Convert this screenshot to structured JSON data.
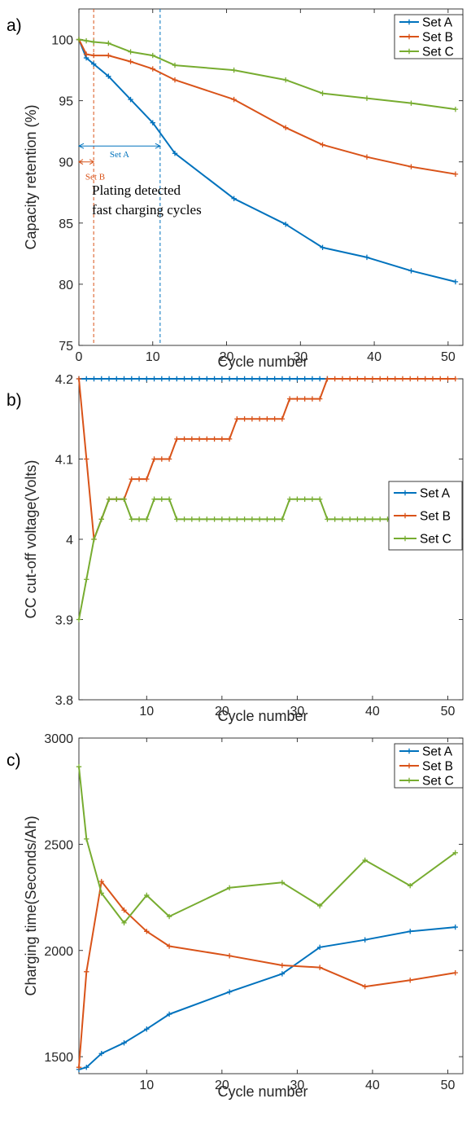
{
  "chart_data": [
    {
      "panel_label": "a)",
      "type": "line",
      "xlabel": "Cycle number",
      "ylabel": "Capacity retention (%)",
      "xlim": [
        0,
        52
      ],
      "ylim": [
        75,
        102.5
      ],
      "xticks": [
        0,
        10,
        20,
        30,
        40,
        50
      ],
      "yticks": [
        75,
        80,
        85,
        90,
        95,
        100
      ],
      "legend_position": "top-right",
      "series": [
        {
          "name": "Set A",
          "color": "#0072BD",
          "x": [
            0,
            1,
            2,
            4,
            7,
            10,
            13,
            21,
            28,
            33,
            39,
            45,
            51
          ],
          "y": [
            100,
            98.5,
            98.0,
            97.0,
            95.1,
            93.2,
            90.7,
            87.0,
            84.9,
            83.0,
            82.2,
            81.1,
            80.2
          ]
        },
        {
          "name": "Set B",
          "color": "#D95319",
          "x": [
            0,
            1,
            2,
            4,
            7,
            10,
            13,
            21,
            28,
            33,
            39,
            45,
            51
          ],
          "y": [
            100,
            98.8,
            98.7,
            98.7,
            98.2,
            97.6,
            96.7,
            95.1,
            92.8,
            91.4,
            90.4,
            89.6,
            89.0
          ]
        },
        {
          "name": "Set C",
          "color": "#77AC30",
          "x": [
            0,
            1,
            2,
            4,
            7,
            10,
            13,
            21,
            28,
            33,
            39,
            45,
            51
          ],
          "y": [
            100,
            99.9,
            99.8,
            99.7,
            99.0,
            98.7,
            97.9,
            97.5,
            96.7,
            95.6,
            95.2,
            94.8,
            94.3
          ]
        }
      ],
      "annotations": {
        "set_a_label": "Set A",
        "set_b_label": "Set B",
        "text_line1": "Plating detected",
        "text_line2": "fast charging cycles",
        "set_a_end_cycle": 11,
        "set_b_end_cycle": 2,
        "set_a_arrow_y": 91.3,
        "set_b_arrow_y": 90.0
      }
    },
    {
      "panel_label": "b)",
      "type": "line",
      "xlabel": "Cycle number",
      "ylabel": "CC cut-off voltage(Volts)",
      "xlim": [
        1,
        52
      ],
      "ylim": [
        3.8,
        4.2
      ],
      "xticks": [
        10,
        20,
        30,
        40,
        50
      ],
      "yticks": [
        3.8,
        3.9,
        4,
        4.1,
        4.2
      ],
      "ytick_labels": [
        "3.8",
        "3.9",
        "4",
        "4.1",
        "4.2"
      ],
      "legend_position": "center-right",
      "series": [
        {
          "name": "Set A",
          "color": "#0072BD",
          "x_start": 1,
          "y": [
            4.2,
            4.2,
            4.2,
            4.2,
            4.2,
            4.2,
            4.2,
            4.2,
            4.2,
            4.2,
            4.2,
            4.2,
            4.2,
            4.2,
            4.2,
            4.2,
            4.2,
            4.2,
            4.2,
            4.2,
            4.2,
            4.2,
            4.2,
            4.2,
            4.2,
            4.2,
            4.2,
            4.2,
            4.2,
            4.2,
            4.2,
            4.2,
            4.2,
            4.2
          ]
        },
        {
          "name": "Set B",
          "color": "#D95319",
          "x_start": 1,
          "y": [
            4.2,
            4.1,
            4.0,
            4.025,
            4.05,
            4.05,
            4.05,
            4.075,
            4.075,
            4.075,
            4.1,
            4.1,
            4.1,
            4.125,
            4.125,
            4.125,
            4.125,
            4.125,
            4.125,
            4.125,
            4.125,
            4.15,
            4.15,
            4.15,
            4.15,
            4.15,
            4.15,
            4.15,
            4.175,
            4.175,
            4.175,
            4.175,
            4.175,
            4.2,
            4.2,
            4.2,
            4.2,
            4.2,
            4.2,
            4.2,
            4.2,
            4.2,
            4.2,
            4.2,
            4.2,
            4.2,
            4.2,
            4.2,
            4.2,
            4.2,
            4.2
          ]
        },
        {
          "name": "Set C",
          "color": "#77AC30",
          "x_start": 1,
          "y": [
            3.9,
            3.95,
            4.0,
            4.025,
            4.05,
            4.05,
            4.05,
            4.025,
            4.025,
            4.025,
            4.05,
            4.05,
            4.05,
            4.025,
            4.025,
            4.025,
            4.025,
            4.025,
            4.025,
            4.025,
            4.025,
            4.025,
            4.025,
            4.025,
            4.025,
            4.025,
            4.025,
            4.025,
            4.05,
            4.05,
            4.05,
            4.05,
            4.05,
            4.025,
            4.025,
            4.025,
            4.025,
            4.025,
            4.025,
            4.025,
            4.025,
            4.025,
            4.025,
            4.025,
            4.025,
            4.025,
            4.025,
            4.025,
            4.025,
            4.025,
            4.025
          ]
        }
      ]
    },
    {
      "panel_label": "c)",
      "type": "line",
      "xlabel": "Cycle number",
      "ylabel": "Charging time(Seconds/Ah)",
      "xlim": [
        1,
        52
      ],
      "ylim": [
        1420,
        3000
      ],
      "xticks": [
        10,
        20,
        30,
        40,
        50
      ],
      "yticks": [
        1500,
        2000,
        2500,
        3000
      ],
      "legend_position": "top-right",
      "series": [
        {
          "name": "Set A",
          "color": "#0072BD",
          "x": [
            1,
            2,
            4,
            7,
            10,
            13,
            21,
            28,
            33,
            39,
            45,
            51
          ],
          "y": [
            1440,
            1450,
            1515,
            1565,
            1630,
            1700,
            1805,
            1890,
            2015,
            2050,
            2090,
            2110
          ]
        },
        {
          "name": "Set B",
          "color": "#D95319",
          "x": [
            1,
            2,
            4,
            7,
            10,
            13,
            21,
            28,
            33,
            39,
            45,
            51
          ],
          "y": [
            1450,
            1900,
            2325,
            2190,
            2090,
            2020,
            1975,
            1930,
            1920,
            1830,
            1860,
            1895
          ]
        },
        {
          "name": "Set C",
          "color": "#77AC30",
          "x": [
            1,
            2,
            4,
            7,
            10,
            13,
            21,
            28,
            33,
            39,
            45,
            51
          ],
          "y": [
            2865,
            2525,
            2270,
            2130,
            2260,
            2160,
            2295,
            2320,
            2210,
            2425,
            2305,
            2460
          ]
        }
      ]
    }
  ]
}
